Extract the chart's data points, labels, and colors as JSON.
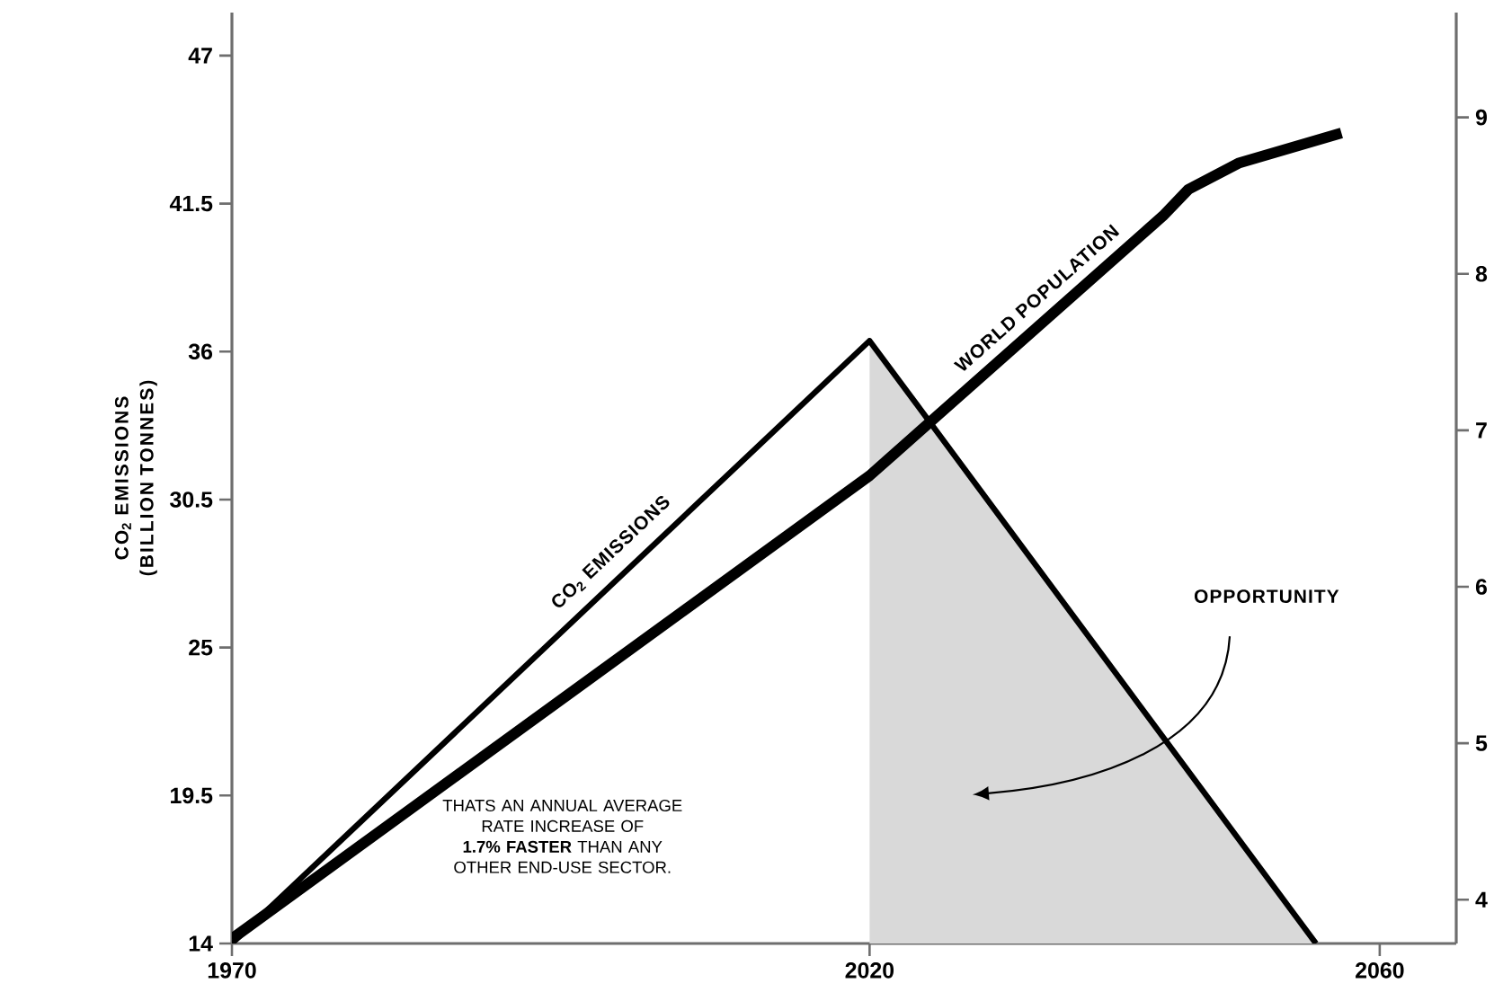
{
  "chart_data": {
    "type": "line",
    "ylabel": "CO$_{2}$ EMISSIONS (BILLION TONNES)",
    "xlim": [
      1970,
      2066
    ],
    "xticks": [
      1970,
      2020,
      2060
    ],
    "ylim": [
      14,
      48.6
    ],
    "yticks": [
      14,
      19.5,
      25,
      30.5,
      36,
      41.5,
      47
    ],
    "y2lim": [
      3.72,
      9.67
    ],
    "y2ticks": [
      4,
      5,
      6,
      7,
      8,
      9
    ],
    "series": [
      {
        "type": "area",
        "color": "#d9d9d9",
        "x": [
          2020,
          2055
        ],
        "values": [
          36.4,
          14
        ]
      },
      {
        "name": "CO$_{2}$ EMISSIONS",
        "color": "#000000",
        "x": [
          1970,
          2020,
          2055
        ],
        "values": [
          14,
          36.4,
          14
        ]
      },
      {
        "name": "WORLD POPULATION",
        "color": "#000000",
        "axis": "y2",
        "x": [
          1970,
          2020,
          2043,
          2045,
          2049,
          2057
        ],
        "values": [
          3.75,
          6.71,
          8.37,
          8.54,
          8.71,
          8.9
        ]
      }
    ],
    "annotations": [
      "THATS AN ANNUAL AVERAGE RATE INCREASE OF **1.7% FASTER** THAN ANY OTHER END-USE SECTOR.",
      "OPPORTUNITY"
    ]
  }
}
